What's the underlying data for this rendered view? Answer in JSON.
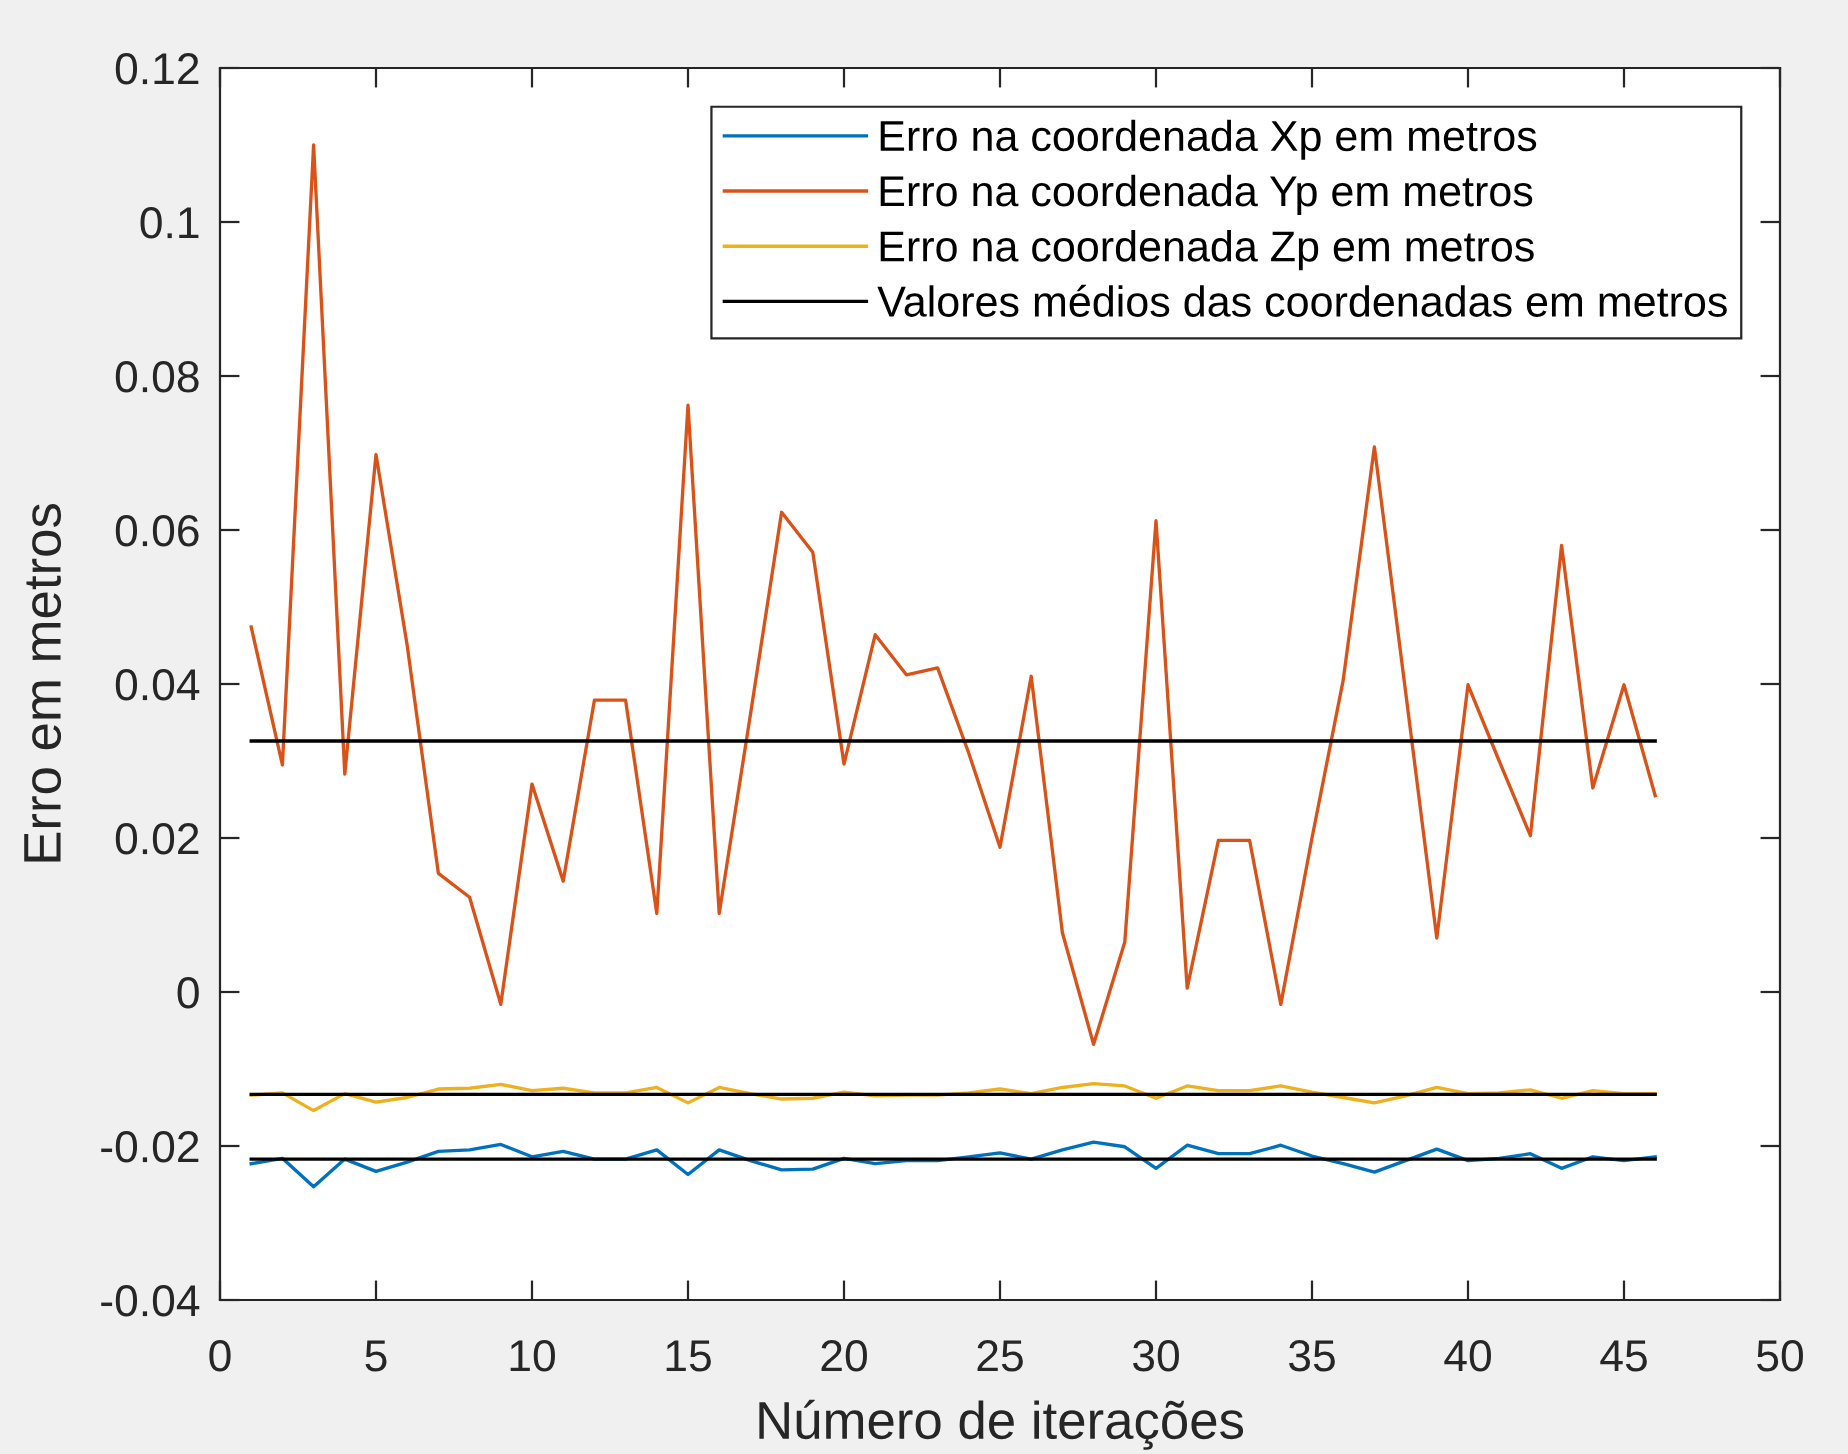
{
  "chart_data": {
    "type": "line",
    "xlabel": "Número de iterações",
    "ylabel": "Erro em metros",
    "xlim": [
      0,
      50
    ],
    "ylim": [
      -0.04,
      0.12
    ],
    "xticks": [
      0,
      5,
      10,
      15,
      20,
      25,
      30,
      35,
      40,
      45,
      50
    ],
    "yticks": [
      -0.04,
      -0.02,
      0,
      0.02,
      0.04,
      0.06,
      0.08,
      0.1,
      0.12
    ],
    "legend": "top right",
    "x": [
      1,
      2,
      3,
      4,
      5,
      6,
      7,
      8,
      9,
      10,
      11,
      12,
      13,
      14,
      15,
      16,
      17,
      18,
      19,
      20,
      21,
      22,
      23,
      24,
      25,
      26,
      27,
      28,
      29,
      30,
      31,
      32,
      33,
      34,
      35,
      36,
      37,
      38,
      39,
      40,
      41,
      42,
      43,
      44,
      45,
      46
    ],
    "series": [
      {
        "name": "Erro na coordenada Xp em metros",
        "color": "#0072bd",
        "values": [
          -0.0223,
          -0.0216,
          -0.0253,
          -0.0217,
          -0.0233,
          -0.0221,
          -0.0207,
          -0.0205,
          -0.0198,
          -0.0214,
          -0.0207,
          -0.0217,
          -0.0217,
          -0.0205,
          -0.0237,
          -0.0205,
          -0.0219,
          -0.0231,
          -0.023,
          -0.0216,
          -0.0223,
          -0.0219,
          -0.0219,
          -0.0214,
          -0.0209,
          -0.0217,
          -0.0205,
          -0.0195,
          -0.0201,
          -0.0229,
          -0.0199,
          -0.021,
          -0.021,
          -0.0199,
          -0.0213,
          -0.0223,
          -0.0234,
          -0.0219,
          -0.0204,
          -0.0219,
          -0.0216,
          -0.021,
          -0.0229,
          -0.0214,
          -0.0219,
          -0.0214
        ]
      },
      {
        "name": "Erro na coordenada Yp em metros",
        "color": "#d95319",
        "values": [
          0.0474,
          0.0295,
          0.11,
          0.0283,
          0.0698,
          0.045,
          0.0154,
          0.0123,
          -0.0016,
          0.027,
          0.0144,
          0.0379,
          0.0379,
          0.0102,
          0.0762,
          0.0102,
          0.036,
          0.0623,
          0.0571,
          0.0296,
          0.0464,
          0.0412,
          0.0421,
          0.031,
          0.0188,
          0.041,
          0.0077,
          -0.0068,
          0.0065,
          0.0612,
          0.0005,
          0.0197,
          0.0197,
          -0.0016,
          0.02,
          0.0405,
          0.0708,
          0.039,
          0.007,
          0.0399,
          0.03,
          0.0203,
          0.058,
          0.0265,
          0.0399,
          0.0255
        ]
      },
      {
        "name": "Erro na coordenada Zp em metros",
        "color": "#edb120",
        "values": [
          -0.0134,
          -0.0131,
          -0.0154,
          -0.0132,
          -0.0143,
          -0.0137,
          -0.0126,
          -0.0125,
          -0.012,
          -0.0128,
          -0.0125,
          -0.0131,
          -0.0131,
          -0.0124,
          -0.0144,
          -0.0124,
          -0.0132,
          -0.0139,
          -0.0138,
          -0.013,
          -0.0135,
          -0.0134,
          -0.0134,
          -0.0131,
          -0.0126,
          -0.0132,
          -0.0124,
          -0.0119,
          -0.0122,
          -0.0138,
          -0.0122,
          -0.0128,
          -0.0128,
          -0.0122,
          -0.013,
          -0.0137,
          -0.0144,
          -0.0135,
          -0.0124,
          -0.0132,
          -0.0131,
          -0.0127,
          -0.0138,
          -0.0128,
          -0.0132,
          -0.0132
        ]
      },
      {
        "name": "Valores médios das coordenadas em metros",
        "color": "#000000",
        "values": [
          0.0326,
          0.0326,
          0.0326,
          0.0326,
          0.0326,
          0.0326,
          0.0326,
          0.0326,
          0.0326,
          0.0326,
          0.0326,
          0.0326,
          0.0326,
          0.0326,
          0.0326,
          0.0326,
          0.0326,
          0.0326,
          0.0326,
          0.0326,
          0.0326,
          0.0326,
          0.0326,
          0.0326,
          0.0326,
          0.0326,
          0.0326,
          0.0326,
          0.0326,
          0.0326,
          0.0326,
          0.0326,
          0.0326,
          0.0326,
          0.0326,
          0.0326,
          0.0326,
          0.0326,
          0.0326,
          0.0326,
          0.0326,
          0.0326,
          0.0326,
          0.0326,
          0.0326,
          0.0326
        ]
      },
      {
        "color": "#000000",
        "values": [
          -0.0133,
          -0.0133,
          -0.0133,
          -0.0133,
          -0.0133,
          -0.0133,
          -0.0133,
          -0.0133,
          -0.0133,
          -0.0133,
          -0.0133,
          -0.0133,
          -0.0133,
          -0.0133,
          -0.0133,
          -0.0133,
          -0.0133,
          -0.0133,
          -0.0133,
          -0.0133,
          -0.0133,
          -0.0133,
          -0.0133,
          -0.0133,
          -0.0133,
          -0.0133,
          -0.0133,
          -0.0133,
          -0.0133,
          -0.0133,
          -0.0133,
          -0.0133,
          -0.0133,
          -0.0133,
          -0.0133,
          -0.0133,
          -0.0133,
          -0.0133,
          -0.0133,
          -0.0133,
          -0.0133,
          -0.0133,
          -0.0133,
          -0.0133,
          -0.0133,
          -0.0133
        ]
      },
      {
        "color": "#000000",
        "values": [
          -0.0217,
          -0.0217,
          -0.0217,
          -0.0217,
          -0.0217,
          -0.0217,
          -0.0217,
          -0.0217,
          -0.0217,
          -0.0217,
          -0.0217,
          -0.0217,
          -0.0217,
          -0.0217,
          -0.0217,
          -0.0217,
          -0.0217,
          -0.0217,
          -0.0217,
          -0.0217,
          -0.0217,
          -0.0217,
          -0.0217,
          -0.0217,
          -0.0217,
          -0.0217,
          -0.0217,
          -0.0217,
          -0.0217,
          -0.0217,
          -0.0217,
          -0.0217,
          -0.0217,
          -0.0217,
          -0.0217,
          -0.0217,
          -0.0217,
          -0.0217,
          -0.0217,
          -0.0217,
          -0.0217,
          -0.0217,
          -0.0217,
          -0.0217,
          -0.0217,
          -0.0217
        ]
      }
    ]
  }
}
